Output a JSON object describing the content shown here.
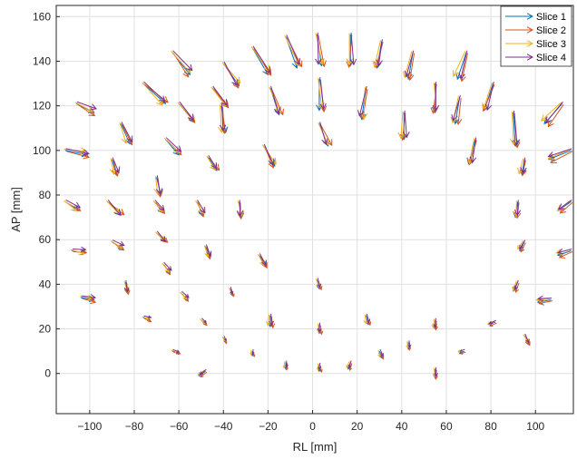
{
  "chart_data": {
    "type": "quiver",
    "title": "",
    "xlabel": "RL [mm]",
    "ylabel": "AP [mm]",
    "xlim": [
      -115,
      117
    ],
    "ylim": [
      -18,
      165
    ],
    "xticks": [
      -100,
      -80,
      -60,
      -40,
      -20,
      0,
      20,
      40,
      60,
      80,
      100
    ],
    "yticks": [
      0,
      20,
      40,
      60,
      80,
      100,
      120,
      140,
      160
    ],
    "grid": true,
    "legend_position": "top-right",
    "series": [
      {
        "name": "Slice 1",
        "color": "#0072BD"
      },
      {
        "name": "Slice 2",
        "color": "#D95319"
      },
      {
        "name": "Slice 3",
        "color": "#EDB120"
      },
      {
        "name": "Slice 4",
        "color": "#7E2F8E"
      }
    ],
    "vectors": [
      {
        "x": -63,
        "y": 144,
        "u": 8,
        "v": -10
      },
      {
        "x": -40,
        "y": 139,
        "u": 7,
        "v": -10
      },
      {
        "x": -27,
        "y": 146,
        "u": 7,
        "v": -12
      },
      {
        "x": -12,
        "y": 151,
        "u": 5,
        "v": -14
      },
      {
        "x": 2,
        "y": 152,
        "u": 2,
        "v": -14
      },
      {
        "x": 17,
        "y": 152,
        "u": 0,
        "v": -14
      },
      {
        "x": 31,
        "y": 149,
        "u": -2,
        "v": -12
      },
      {
        "x": 45,
        "y": 144,
        "u": -2,
        "v": -12
      },
      {
        "x": 69,
        "y": 144,
        "u": -4,
        "v": -12
      },
      {
        "x": -76,
        "y": 130,
        "u": 10,
        "v": -9
      },
      {
        "x": -45,
        "y": 128,
        "u": 7,
        "v": -8
      },
      {
        "x": -106,
        "y": 121,
        "u": 8,
        "v": -4
      },
      {
        "x": -60,
        "y": 121,
        "u": 7,
        "v": -8
      },
      {
        "x": -19,
        "y": 128,
        "u": 4,
        "v": -12
      },
      {
        "x": 3,
        "y": 132,
        "u": 0,
        "v": -14
      },
      {
        "x": 24,
        "y": 128,
        "u": -2,
        "v": -14
      },
      {
        "x": 55,
        "y": 130,
        "u": 0,
        "v": -13
      },
      {
        "x": 81,
        "y": 130,
        "u": -4,
        "v": -12
      },
      {
        "x": 66,
        "y": 124,
        "u": -2,
        "v": -12
      },
      {
        "x": 112,
        "y": 121,
        "u": -8,
        "v": -9
      },
      {
        "x": -86,
        "y": 112,
        "u": 4,
        "v": -9
      },
      {
        "x": -41,
        "y": 120,
        "u": 2,
        "v": -12
      },
      {
        "x": 41,
        "y": 117,
        "u": 0,
        "v": -12
      },
      {
        "x": 90,
        "y": 117,
        "u": 1,
        "v": -15
      },
      {
        "x": 3,
        "y": 112,
        "u": 4,
        "v": -10
      },
      {
        "x": -66,
        "y": 105,
        "u": 6,
        "v": -7
      },
      {
        "x": -111,
        "y": 100,
        "u": 10,
        "v": -2
      },
      {
        "x": -22,
        "y": 102,
        "u": 5,
        "v": -9
      },
      {
        "x": 73,
        "y": 105,
        "u": -3,
        "v": -11
      },
      {
        "x": 116,
        "y": 100,
        "u": -10,
        "v": -4
      },
      {
        "x": -47,
        "y": 97,
        "u": 4,
        "v": -6
      },
      {
        "x": -90,
        "y": 96,
        "u": 2,
        "v": -7
      },
      {
        "x": -70,
        "y": 88,
        "u": 2,
        "v": -8
      },
      {
        "x": 95,
        "y": 96,
        "u": -1,
        "v": -7
      },
      {
        "x": -111,
        "y": 77,
        "u": 6,
        "v": -4
      },
      {
        "x": -92,
        "y": 77,
        "u": 6,
        "v": -6
      },
      {
        "x": -71,
        "y": 77,
        "u": 4,
        "v": -5
      },
      {
        "x": -52,
        "y": 77,
        "u": 3,
        "v": -6
      },
      {
        "x": -33,
        "y": 77,
        "u": 1,
        "v": -7
      },
      {
        "x": 92,
        "y": 77,
        "u": -1,
        "v": -7
      },
      {
        "x": 116,
        "y": 77,
        "u": -6,
        "v": -4
      },
      {
        "x": -70,
        "y": 63,
        "u": 4,
        "v": -4
      },
      {
        "x": -90,
        "y": 59,
        "u": 5,
        "v": -3
      },
      {
        "x": -48,
        "y": 57,
        "u": 2,
        "v": -5
      },
      {
        "x": 95,
        "y": 59,
        "u": -2,
        "v": -4
      },
      {
        "x": -108,
        "y": 55,
        "u": 6,
        "v": -1
      },
      {
        "x": 116,
        "y": 55,
        "u": -6,
        "v": -2
      },
      {
        "x": -24,
        "y": 53,
        "u": 3,
        "v": -5
      },
      {
        "x": -67,
        "y": 49,
        "u": 3,
        "v": -4
      },
      {
        "x": -84,
        "y": 41,
        "u": 1,
        "v": -5
      },
      {
        "x": 2,
        "y": 42,
        "u": 1,
        "v": -4
      },
      {
        "x": 92,
        "y": 41,
        "u": -2,
        "v": -4
      },
      {
        "x": -37,
        "y": 38,
        "u": 1,
        "v": -3
      },
      {
        "x": -104,
        "y": 34,
        "u": 6,
        "v": -1
      },
      {
        "x": -59,
        "y": 36,
        "u": 3,
        "v": -3
      },
      {
        "x": 107,
        "y": 33,
        "u": -6,
        "v": -1
      },
      {
        "x": -19,
        "y": 26,
        "u": 0,
        "v": -5
      },
      {
        "x": 24,
        "y": 26,
        "u": 1,
        "v": -4
      },
      {
        "x": 55,
        "y": 24,
        "u": 0,
        "v": -4
      },
      {
        "x": -76,
        "y": 25,
        "u": 3,
        "v": -1
      },
      {
        "x": -50,
        "y": 24,
        "u": 2,
        "v": -2
      },
      {
        "x": 3,
        "y": 22,
        "u": 0,
        "v": -4
      },
      {
        "x": 82,
        "y": 23,
        "u": -3,
        "v": -1
      },
      {
        "x": 95,
        "y": 17,
        "u": 2,
        "v": -4
      },
      {
        "x": -40,
        "y": 16,
        "u": 1,
        "v": -2
      },
      {
        "x": 43,
        "y": 14,
        "u": 0,
        "v": -3
      },
      {
        "x": -63,
        "y": 10,
        "u": 3,
        "v": -1
      },
      {
        "x": -27,
        "y": 10,
        "u": 0,
        "v": -2
      },
      {
        "x": 30,
        "y": 10,
        "u": 1,
        "v": -3
      },
      {
        "x": 68,
        "y": 10,
        "u": -2,
        "v": -1
      },
      {
        "x": -12,
        "y": 5,
        "u": 0,
        "v": -3
      },
      {
        "x": 17,
        "y": 5,
        "u": -1,
        "v": -3
      },
      {
        "x": 3,
        "y": 4,
        "u": 0,
        "v": -3
      },
      {
        "x": -48,
        "y": 1,
        "u": -3,
        "v": -2
      },
      {
        "x": 55,
        "y": 2,
        "u": 0,
        "v": -4
      }
    ]
  }
}
